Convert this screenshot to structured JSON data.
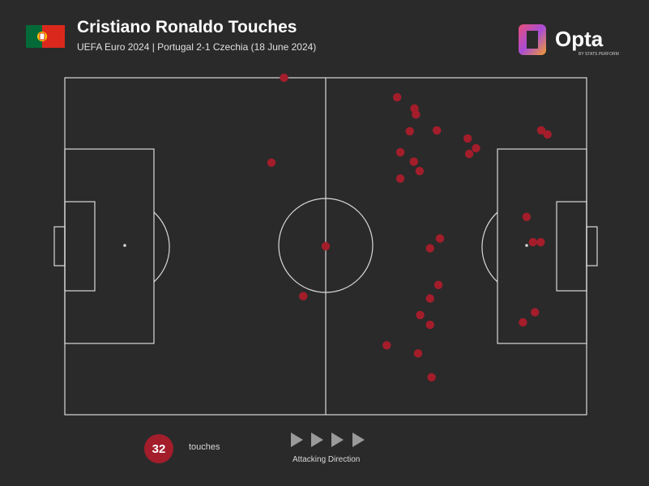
{
  "header": {
    "title": "Cristiano Ronaldo Touches",
    "subtitle": "UEFA Euro 2024 | Portugal 2-1 Czechia (18 June 2024)",
    "flag_icon": "portugal-flag-icon",
    "logo_text": "Opta",
    "logo_tagline": "BY STATS PERFORM"
  },
  "colors": {
    "background": "#2a2a2a",
    "pitch_lines": "#d9d9d9",
    "touch_marker": "#a31d2b",
    "flag_green": "#046a38",
    "flag_red": "#da291c"
  },
  "chart_data": {
    "type": "scatter",
    "title": "Cristiano Ronaldo Touches",
    "subtitle": "UEFA Euro 2024 | Portugal 2-1 Czechia (18 June 2024)",
    "xlim": [
      0,
      100
    ],
    "ylim": [
      0,
      100
    ],
    "grid": false,
    "attacking_direction": "left-to-right",
    "points": [
      {
        "x": 42.0,
        "y": 100.0
      },
      {
        "x": 63.7,
        "y": 94.2
      },
      {
        "x": 67.0,
        "y": 90.9
      },
      {
        "x": 67.3,
        "y": 89.1
      },
      {
        "x": 66.1,
        "y": 84.1
      },
      {
        "x": 71.3,
        "y": 84.4
      },
      {
        "x": 77.2,
        "y": 82.0
      },
      {
        "x": 91.3,
        "y": 84.4
      },
      {
        "x": 92.5,
        "y": 83.2
      },
      {
        "x": 78.8,
        "y": 79.1
      },
      {
        "x": 64.3,
        "y": 77.9
      },
      {
        "x": 77.5,
        "y": 77.4
      },
      {
        "x": 66.9,
        "y": 75.1
      },
      {
        "x": 39.6,
        "y": 74.8
      },
      {
        "x": 68.0,
        "y": 72.3
      },
      {
        "x": 64.3,
        "y": 70.1
      },
      {
        "x": 50.0,
        "y": 50.0
      },
      {
        "x": 88.5,
        "y": 58.7
      },
      {
        "x": 71.9,
        "y": 52.3
      },
      {
        "x": 89.7,
        "y": 51.2
      },
      {
        "x": 91.2,
        "y": 51.2
      },
      {
        "x": 70.0,
        "y": 49.4
      },
      {
        "x": 71.6,
        "y": 38.5
      },
      {
        "x": 70.0,
        "y": 34.5
      },
      {
        "x": 45.7,
        "y": 35.2
      },
      {
        "x": 68.1,
        "y": 29.6
      },
      {
        "x": 90.1,
        "y": 30.4
      },
      {
        "x": 87.8,
        "y": 27.4
      },
      {
        "x": 70.0,
        "y": 26.7
      },
      {
        "x": 61.7,
        "y": 20.6
      },
      {
        "x": 67.7,
        "y": 18.2
      },
      {
        "x": 70.3,
        "y": 11.1
      }
    ]
  },
  "footer": {
    "touch_count": "32",
    "touch_label": "touches",
    "direction_label": "Attacking Direction"
  }
}
